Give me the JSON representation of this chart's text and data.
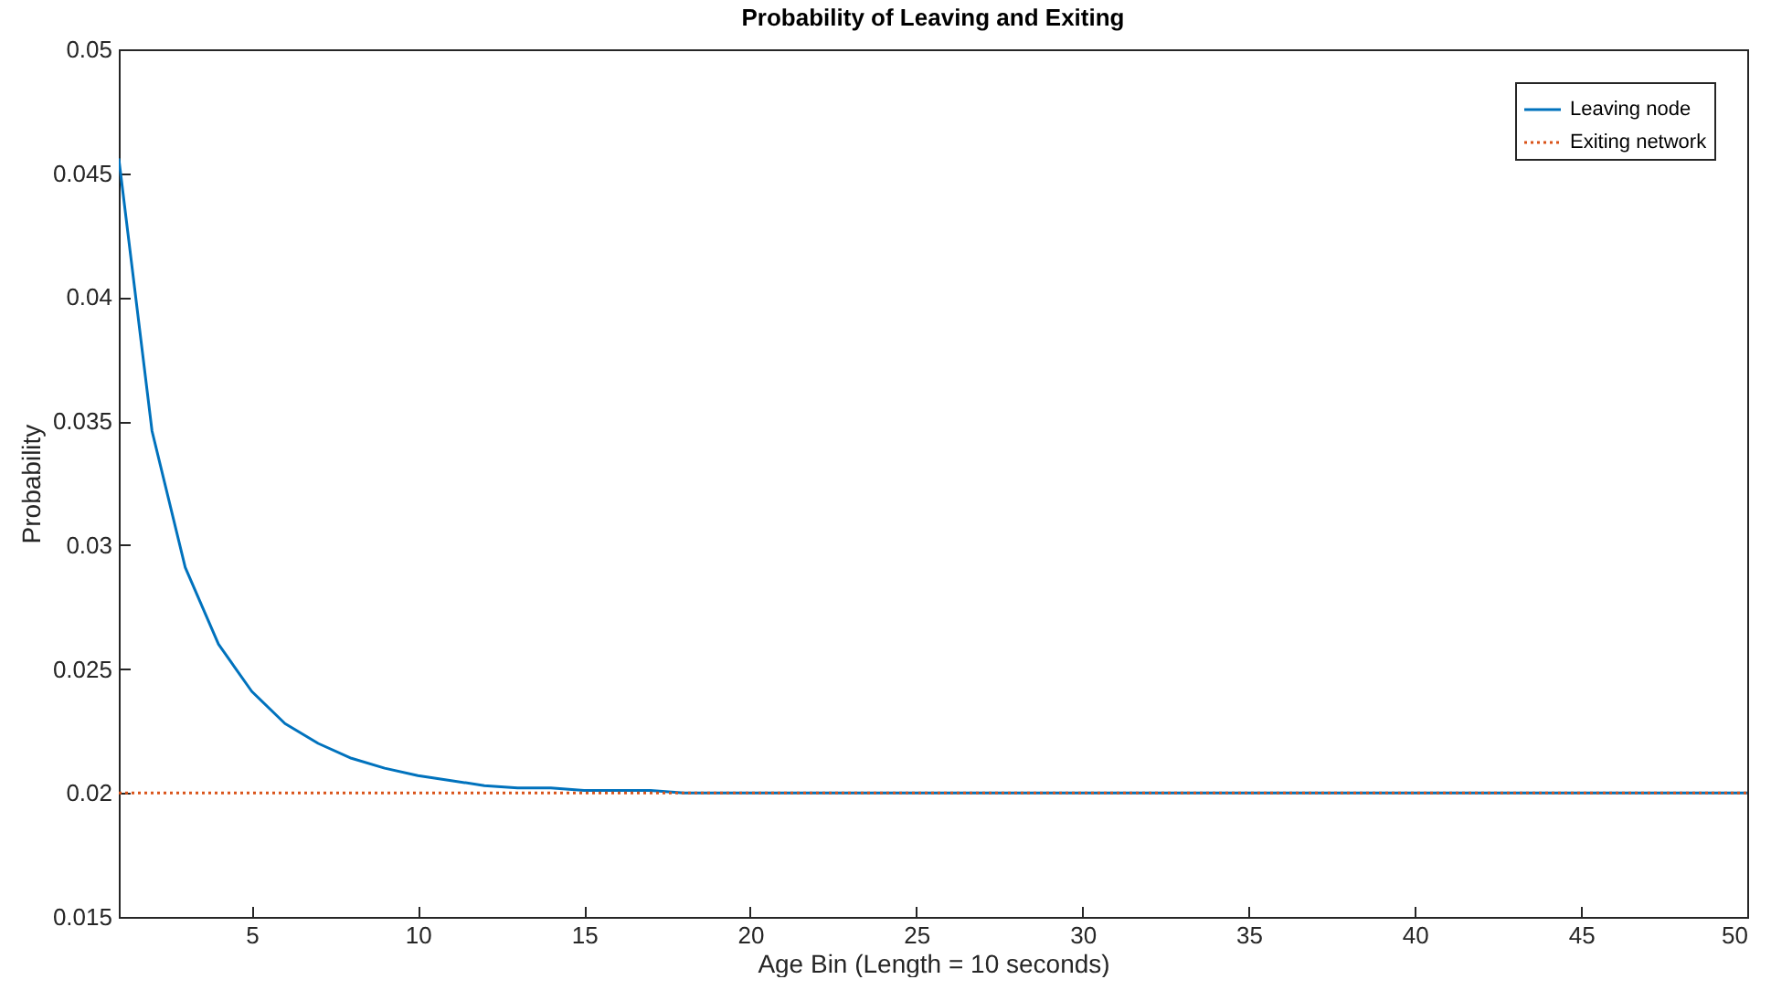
{
  "chart_data": {
    "type": "line",
    "title": "Probability of Leaving and Exiting",
    "xlabel": "Age Bin (Length = 10 seconds)",
    "ylabel": "Probability",
    "x": [
      1,
      2,
      3,
      4,
      5,
      6,
      7,
      8,
      9,
      10,
      11,
      12,
      13,
      14,
      15,
      16,
      17,
      18,
      19,
      20,
      21,
      22,
      23,
      24,
      25,
      26,
      27,
      28,
      29,
      30,
      31,
      32,
      33,
      34,
      35,
      36,
      37,
      38,
      39,
      40,
      41,
      42,
      43,
      44,
      45,
      46,
      47,
      48,
      49,
      50
    ],
    "series": [
      {
        "name": "Leaving node",
        "color": "#0072bd",
        "line_style": "solid",
        "values": [
          0.0456,
          0.0346,
          0.0291,
          0.026,
          0.0241,
          0.0228,
          0.022,
          0.0214,
          0.021,
          0.0207,
          0.0205,
          0.0203,
          0.0202,
          0.0202,
          0.0201,
          0.0201,
          0.0201,
          0.02,
          0.02,
          0.02,
          0.02,
          0.02,
          0.02,
          0.02,
          0.02,
          0.02,
          0.02,
          0.02,
          0.02,
          0.02,
          0.02,
          0.02,
          0.02,
          0.02,
          0.02,
          0.02,
          0.02,
          0.02,
          0.02,
          0.02,
          0.02,
          0.02,
          0.02,
          0.02,
          0.02,
          0.02,
          0.02,
          0.02,
          0.02,
          0.02
        ]
      },
      {
        "name": "Exiting network",
        "color": "#d95319",
        "line_style": "dotted",
        "values": [
          0.02,
          0.02,
          0.02,
          0.02,
          0.02,
          0.02,
          0.02,
          0.02,
          0.02,
          0.02,
          0.02,
          0.02,
          0.02,
          0.02,
          0.02,
          0.02,
          0.02,
          0.02,
          0.02,
          0.02,
          0.02,
          0.02,
          0.02,
          0.02,
          0.02,
          0.02,
          0.02,
          0.02,
          0.02,
          0.02,
          0.02,
          0.02,
          0.02,
          0.02,
          0.02,
          0.02,
          0.02,
          0.02,
          0.02,
          0.02,
          0.02,
          0.02,
          0.02,
          0.02,
          0.02,
          0.02,
          0.02,
          0.02,
          0.02,
          0.02
        ]
      }
    ],
    "xlim": [
      1,
      50
    ],
    "xticks": [
      5,
      10,
      15,
      20,
      25,
      30,
      35,
      40,
      45,
      50
    ],
    "ylim": [
      0.015,
      0.05
    ],
    "yticks": [
      0.015,
      0.02,
      0.025,
      0.03,
      0.035,
      0.04,
      0.045,
      0.05
    ],
    "legend": "top right"
  }
}
